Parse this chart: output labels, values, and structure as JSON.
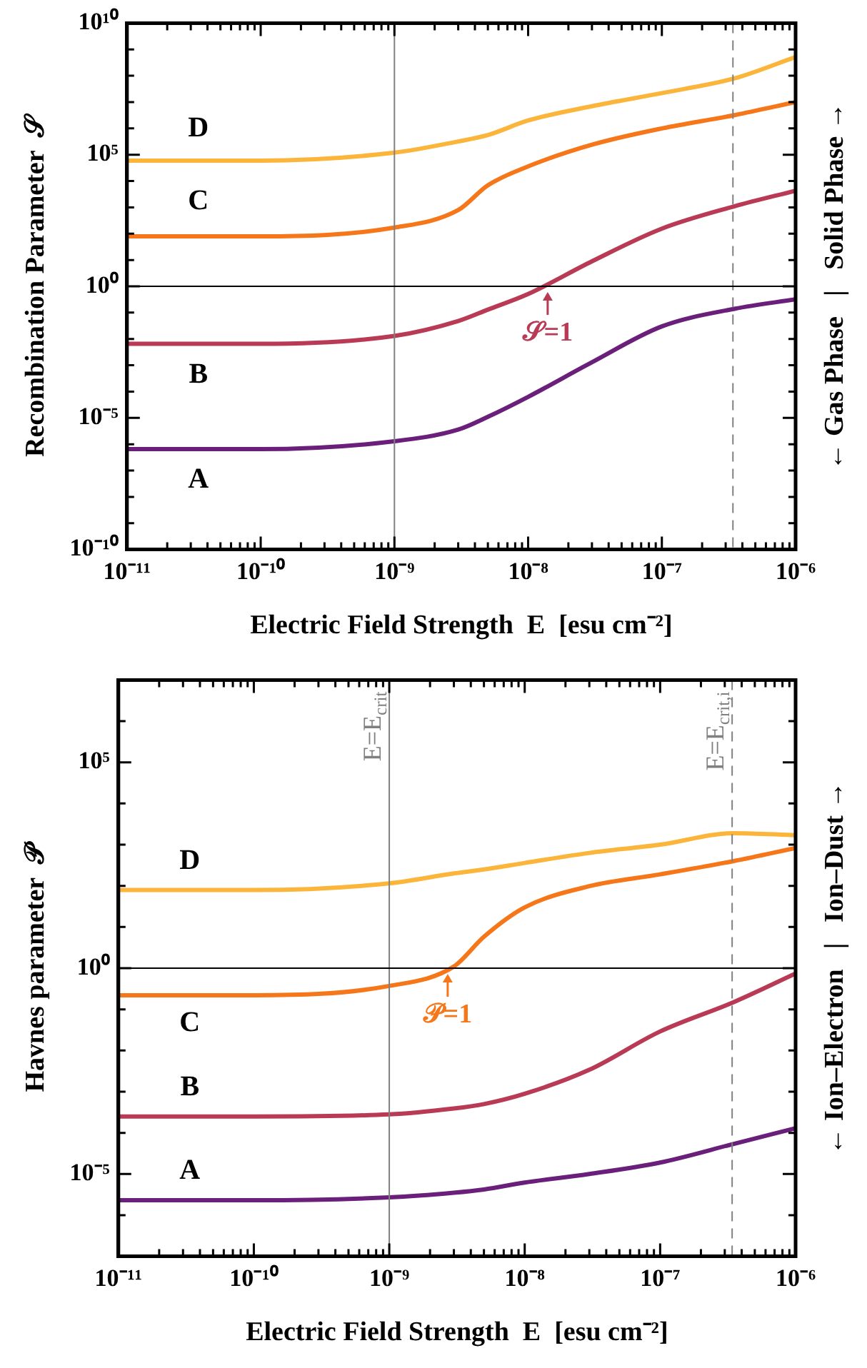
{
  "chart_data": [
    {
      "type": "line",
      "log": "xy",
      "grid": false,
      "legend": false,
      "marker": "none",
      "xlabel": "Electric Field Strength  E  [esu cm⁻²]",
      "ylabel": "Recombination Parameter  𝒮",
      "x": [
        1e-11,
        1e-10,
        1e-09,
        3e-09,
        5e-09,
        1e-08,
        3e-08,
        1e-07,
        3.5e-07,
        1e-06
      ],
      "series": [
        {
          "name": "A",
          "color": "#6a1f7a",
          "values": [
            6.5e-07,
            6.5e-07,
            1.3e-06,
            3.6e-06,
            1.1e-05,
            6.3e-05,
            0.0013,
            0.03,
            0.14,
            0.32
          ]
        },
        {
          "name": "B",
          "color": "#b83a55",
          "values": [
            0.0065,
            0.0065,
            0.013,
            0.048,
            0.13,
            0.51,
            8.9,
            155,
            1100,
            4300
          ]
        },
        {
          "name": "C",
          "color": "#f6761a",
          "values": [
            79,
            79,
            170,
            790,
            6900,
            36000,
            240000,
            1000000.0,
            3200000.0,
            10000000.0
          ]
        },
        {
          "name": "D",
          "color": "#fbb53a",
          "values": [
            60000,
            60000,
            120000,
            320000,
            560000,
            2000000.0,
            7000000.0,
            22000000.0,
            80000000.0,
            520000000.0
          ]
        }
      ],
      "xlim": [
        1e-11,
        1e-06
      ],
      "ylim": [
        1e-10,
        10000000000.0
      ],
      "xticks": [
        {
          "value": 1e-11,
          "label": "10⁻¹¹"
        },
        {
          "value": 2e-11,
          "label": null
        },
        {
          "value": 3e-11,
          "label": null
        },
        {
          "value": 4e-11,
          "label": null
        },
        {
          "value": 5e-11,
          "label": null
        },
        {
          "value": 6e-11,
          "label": null
        },
        {
          "value": 7e-11,
          "label": null
        },
        {
          "value": 8e-11,
          "label": null
        },
        {
          "value": 9e-11,
          "label": null
        },
        {
          "value": 1e-10,
          "label": "10⁻¹⁰"
        },
        {
          "value": 2e-10,
          "label": null
        },
        {
          "value": 3e-10,
          "label": null
        },
        {
          "value": 4e-10,
          "label": null
        },
        {
          "value": 5e-10,
          "label": null
        },
        {
          "value": 6e-10,
          "label": null
        },
        {
          "value": 7e-10,
          "label": null
        },
        {
          "value": 8e-10,
          "label": null
        },
        {
          "value": 9e-10,
          "label": null
        },
        {
          "value": 1e-09,
          "label": "10⁻⁹"
        },
        {
          "value": 2e-09,
          "label": null
        },
        {
          "value": 3e-09,
          "label": null
        },
        {
          "value": 4e-09,
          "label": null
        },
        {
          "value": 5e-09,
          "label": null
        },
        {
          "value": 6e-09,
          "label": null
        },
        {
          "value": 7e-09,
          "label": null
        },
        {
          "value": 8e-09,
          "label": null
        },
        {
          "value": 9e-09,
          "label": null
        },
        {
          "value": 1e-08,
          "label": "10⁻⁸"
        },
        {
          "value": 2e-08,
          "label": null
        },
        {
          "value": 3e-08,
          "label": null
        },
        {
          "value": 4e-08,
          "label": null
        },
        {
          "value": 5e-08,
          "label": null
        },
        {
          "value": 6e-08,
          "label": null
        },
        {
          "value": 7e-08,
          "label": null
        },
        {
          "value": 8e-08,
          "label": null
        },
        {
          "value": 9e-08,
          "label": null
        },
        {
          "value": 1e-07,
          "label": "10⁻⁷"
        },
        {
          "value": 2e-07,
          "label": null
        },
        {
          "value": 3e-07,
          "label": null
        },
        {
          "value": 4e-07,
          "label": null
        },
        {
          "value": 5e-07,
          "label": null
        },
        {
          "value": 6e-07,
          "label": null
        },
        {
          "value": 7e-07,
          "label": null
        },
        {
          "value": 8e-07,
          "label": null
        },
        {
          "value": 9e-07,
          "label": null
        },
        {
          "value": 1e-06,
          "label": "10⁻⁶"
        }
      ],
      "yticks": [
        {
          "value": 1e-10,
          "label": "10⁻¹⁰"
        },
        {
          "value": 1e-09,
          "label": null
        },
        {
          "value": 1e-08,
          "label": null
        },
        {
          "value": 1e-07,
          "label": null
        },
        {
          "value": 1e-06,
          "label": null
        },
        {
          "value": 1e-05,
          "label": "10⁻⁵"
        },
        {
          "value": 0.0001,
          "label": null
        },
        {
          "value": 0.001,
          "label": null
        },
        {
          "value": 0.01,
          "label": null
        },
        {
          "value": 0.1,
          "label": null
        },
        {
          "value": 1,
          "label": "10⁰"
        },
        {
          "value": 10,
          "label": null
        },
        {
          "value": 100,
          "label": null
        },
        {
          "value": 1000,
          "label": null
        },
        {
          "value": 10000,
          "label": null
        },
        {
          "value": 100000,
          "label": "10⁵"
        },
        {
          "value": 1000000.0,
          "label": null
        },
        {
          "value": 10000000.0,
          "label": null
        },
        {
          "value": 100000000.0,
          "label": null
        },
        {
          "value": 1000000000.0,
          "label": null
        },
        {
          "value": 10000000000.0,
          "label": "10¹⁰"
        }
      ],
      "ref_lines": [
        {
          "axis": "x",
          "value": 1e-09,
          "color": "#808080"
        },
        {
          "axis": "x",
          "value": 3.4e-07,
          "color": "#808080",
          "line_style": "dashed"
        },
        {
          "axis": "y",
          "value": 1,
          "color": "#000000"
        }
      ],
      "annotations": [
        {
          "text": "𝒮=1",
          "x": 1.4e-08,
          "y": 1
        },
        "← Gas Phase   |   Solid Phase →"
      ]
    },
    {
      "type": "line",
      "log": "xy",
      "grid": false,
      "legend": false,
      "marker": "none",
      "xlabel": "Electric Field Strength  E  [esu cm⁻²]",
      "ylabel": "Havnes parameter  𝒫",
      "x": [
        1e-11,
        1e-10,
        1e-09,
        3e-09,
        5e-09,
        1e-08,
        3e-08,
        1e-07,
        3.5e-07,
        1e-06
      ],
      "series": [
        {
          "name": "A",
          "color": "#6a1f7a",
          "values": [
            2.3e-06,
            2.3e-06,
            2.7e-06,
            3.5e-06,
            4.2e-06,
            6.2e-06,
            1e-05,
            1.9e-05,
            5.4e-05,
            0.00013
          ]
        },
        {
          "name": "B",
          "color": "#b83a55",
          "values": [
            0.00025,
            0.00025,
            0.00028,
            0.00039,
            0.0005,
            0.00089,
            0.0034,
            0.029,
            0.15,
            0.74
          ]
        },
        {
          "name": "C",
          "color": "#f6761a",
          "values": [
            0.22,
            0.22,
            0.37,
            1.1,
            5.8,
            30,
            98,
            190,
            400,
            830
          ]
        },
        {
          "name": "D",
          "color": "#fbb53a",
          "values": [
            79,
            79,
            115,
            200,
            250,
            360,
            630,
            1000,
            1900,
            1700
          ]
        }
      ],
      "xlim": [
        1e-11,
        1e-06
      ],
      "ylim": [
        1e-07,
        10000000.0
      ],
      "xticks": [
        {
          "value": 1e-11,
          "label": "10⁻¹¹"
        },
        {
          "value": 2e-11,
          "label": null
        },
        {
          "value": 3e-11,
          "label": null
        },
        {
          "value": 4e-11,
          "label": null
        },
        {
          "value": 5e-11,
          "label": null
        },
        {
          "value": 6e-11,
          "label": null
        },
        {
          "value": 7e-11,
          "label": null
        },
        {
          "value": 8e-11,
          "label": null
        },
        {
          "value": 9e-11,
          "label": null
        },
        {
          "value": 1e-10,
          "label": "10⁻¹⁰"
        },
        {
          "value": 2e-10,
          "label": null
        },
        {
          "value": 3e-10,
          "label": null
        },
        {
          "value": 4e-10,
          "label": null
        },
        {
          "value": 5e-10,
          "label": null
        },
        {
          "value": 6e-10,
          "label": null
        },
        {
          "value": 7e-10,
          "label": null
        },
        {
          "value": 8e-10,
          "label": null
        },
        {
          "value": 9e-10,
          "label": null
        },
        {
          "value": 1e-09,
          "label": "10⁻⁹"
        },
        {
          "value": 2e-09,
          "label": null
        },
        {
          "value": 3e-09,
          "label": null
        },
        {
          "value": 4e-09,
          "label": null
        },
        {
          "value": 5e-09,
          "label": null
        },
        {
          "value": 6e-09,
          "label": null
        },
        {
          "value": 7e-09,
          "label": null
        },
        {
          "value": 8e-09,
          "label": null
        },
        {
          "value": 9e-09,
          "label": null
        },
        {
          "value": 1e-08,
          "label": "10⁻⁸"
        },
        {
          "value": 2e-08,
          "label": null
        },
        {
          "value": 3e-08,
          "label": null
        },
        {
          "value": 4e-08,
          "label": null
        },
        {
          "value": 5e-08,
          "label": null
        },
        {
          "value": 6e-08,
          "label": null
        },
        {
          "value": 7e-08,
          "label": null
        },
        {
          "value": 8e-08,
          "label": null
        },
        {
          "value": 9e-08,
          "label": null
        },
        {
          "value": 1e-07,
          "label": "10⁻⁷"
        },
        {
          "value": 2e-07,
          "label": null
        },
        {
          "value": 3e-07,
          "label": null
        },
        {
          "value": 4e-07,
          "label": null
        },
        {
          "value": 5e-07,
          "label": null
        },
        {
          "value": 6e-07,
          "label": null
        },
        {
          "value": 7e-07,
          "label": null
        },
        {
          "value": 8e-07,
          "label": null
        },
        {
          "value": 9e-07,
          "label": null
        },
        {
          "value": 1e-06,
          "label": "10⁻⁶"
        }
      ],
      "yticks": [
        {
          "value": 1e-07,
          "label": null
        },
        {
          "value": 1e-06,
          "label": null
        },
        {
          "value": 1e-05,
          "label": "10⁻⁵"
        },
        {
          "value": 0.0001,
          "label": null
        },
        {
          "value": 0.001,
          "label": null
        },
        {
          "value": 0.01,
          "label": null
        },
        {
          "value": 0.1,
          "label": null
        },
        {
          "value": 1,
          "label": "10⁰"
        },
        {
          "value": 10,
          "label": null
        },
        {
          "value": 100,
          "label": null
        },
        {
          "value": 1000,
          "label": null
        },
        {
          "value": 10000,
          "label": null
        },
        {
          "value": 100000,
          "label": "10⁵"
        },
        {
          "value": 1000000.0,
          "label": null
        },
        {
          "value": 10000000.0,
          "label": null
        }
      ],
      "ref_lines": [
        {
          "axis": "x",
          "value": 1e-09,
          "color": "#808080",
          "label": "E=E$_{crit}$"
        },
        {
          "axis": "x",
          "value": 3.4e-07,
          "color": "#808080",
          "line_style": "dashed",
          "label": "E=E$_{crit,i}$"
        },
        {
          "axis": "y",
          "value": 1,
          "color": "#000000"
        }
      ],
      "annotations": [
        {
          "text": "𝒫=1",
          "x": 2.7e-09,
          "y": 1
        },
        "← Ion–Electron   |   Ion–Dust →"
      ]
    }
  ]
}
